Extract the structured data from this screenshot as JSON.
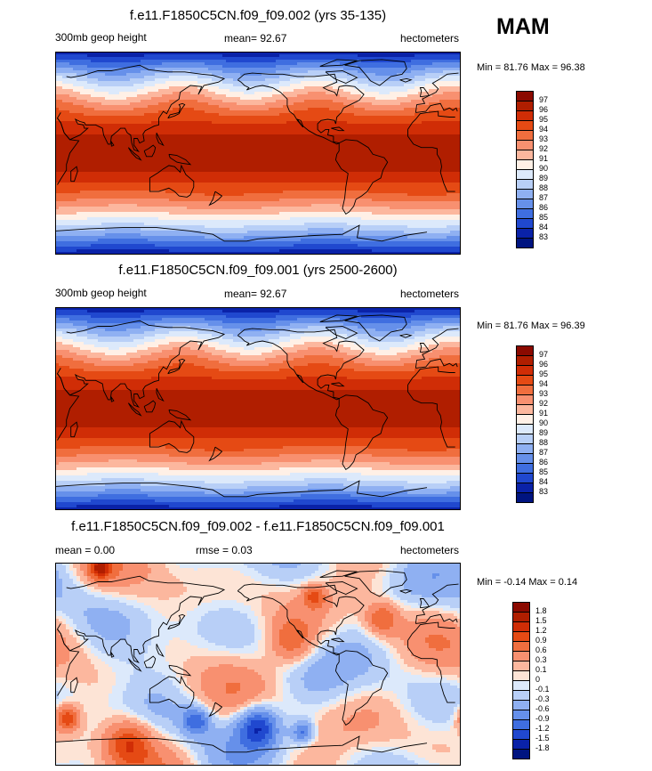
{
  "season": "MAM",
  "panels": [
    {
      "title": "f.e11.F1850C5CN.f09_f09.002 (yrs 35-135)",
      "left_label": "300mb geop height",
      "center_label": "mean=  92.67",
      "right_label": "hectometers",
      "minmax": "Min =  81.76 Max =  96.38",
      "field": "abs"
    },
    {
      "title": "f.e11.F1850C5CN.f09_f09.001 (yrs 2500-2600)",
      "left_label": "300mb geop height",
      "center_label": "mean=  92.67",
      "right_label": "hectometers",
      "minmax": "Min =  81.76 Max =  96.39",
      "field": "abs"
    },
    {
      "title": "f.e11.F1850C5CN.f09_f09.002 - f.e11.F1850C5CN.f09_f09.001",
      "left_label": "mean =   0.00",
      "center_label": "rmse =   0.03",
      "right_label": "hectometers",
      "minmax": "Min =  -0.14 Max =   0.14",
      "field": "diff"
    }
  ],
  "chart_data": [
    {
      "type": "heatmap",
      "title": "f.e11.F1850C5CN.f09_f09.002 (yrs 35-135)",
      "variable": "300mb geop height",
      "units": "hectometers",
      "mean": 92.67,
      "min": 81.76,
      "max": 96.38,
      "levels": [
        "97",
        "96",
        "95",
        "94",
        "93",
        "92",
        "91",
        "90",
        "89",
        "88",
        "87",
        "86",
        "85",
        "84",
        "83"
      ],
      "colors": [
        "#8b0a00",
        "#b01e00",
        "#d02d06",
        "#e54a14",
        "#f06e3e",
        "#f89070",
        "#fcb79e",
        "#fff0e6",
        "#dce9fb",
        "#b8cff7",
        "#8fb0f2",
        "#6690ea",
        "#3f6ee0",
        "#2048cf",
        "#0a22a8",
        "#001480"
      ]
    },
    {
      "type": "heatmap",
      "title": "f.e11.F1850C5CN.f09_f09.001 (yrs 2500-2600)",
      "variable": "300mb geop height",
      "units": "hectometers",
      "mean": 92.67,
      "min": 81.76,
      "max": 96.39,
      "levels": [
        "97",
        "96",
        "95",
        "94",
        "93",
        "92",
        "91",
        "90",
        "89",
        "88",
        "87",
        "86",
        "85",
        "84",
        "83"
      ],
      "colors": [
        "#8b0a00",
        "#b01e00",
        "#d02d06",
        "#e54a14",
        "#f06e3e",
        "#f89070",
        "#fcb79e",
        "#fff0e6",
        "#dce9fb",
        "#b8cff7",
        "#8fb0f2",
        "#6690ea",
        "#3f6ee0",
        "#2048cf",
        "#0a22a8",
        "#001480"
      ]
    },
    {
      "type": "heatmap",
      "title": "f.e11.F1850C5CN.f09_f09.002 - f.e11.F1850C5CN.f09_f09.001",
      "units": "hectometers",
      "mean": 0.0,
      "rmse": 0.03,
      "min": -0.14,
      "max": 0.14,
      "levels": [
        "1.8",
        "1.5",
        "1.2",
        "0.9",
        "0.6",
        "0.3",
        "0.1",
        "0",
        "-0.1",
        "-0.3",
        "-0.6",
        "-0.9",
        "-1.2",
        "-1.5",
        "-1.8"
      ],
      "colors": [
        "#8b0a00",
        "#b01e00",
        "#d02d06",
        "#e54a14",
        "#f06e3e",
        "#f89070",
        "#fcb79e",
        "#fde4d6",
        "#dce9fb",
        "#b8cff7",
        "#8fb0f2",
        "#6690ea",
        "#3f6ee0",
        "#2048cf",
        "#0a22a8",
        "#001480"
      ]
    }
  ]
}
